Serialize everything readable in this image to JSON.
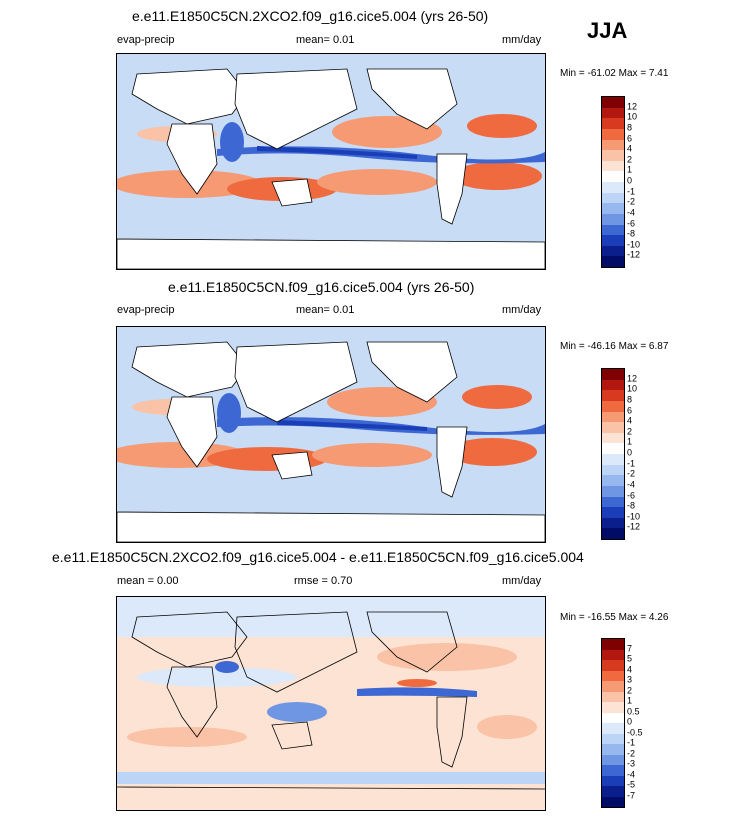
{
  "season": "JJA",
  "panels": [
    {
      "title": "e.e11.E1850C5CN.2XCO2.f09_g16.cice5.004 (yrs 26-50)",
      "variable": "evap-precip",
      "stat": "mean=   0.01",
      "units": "mm/day",
      "minmax": "Min = -61.02 Max =   7.41",
      "levels": [
        "12",
        "10",
        "8",
        "6",
        "4",
        "2",
        "1",
        "0",
        "-1",
        "-2",
        "-4",
        "-6",
        "-8",
        "-10",
        "-12"
      ]
    },
    {
      "title": "e.e11.E1850C5CN.f09_g16.cice5.004 (yrs 26-50)",
      "variable": "evap-precip",
      "stat": "mean=   0.01",
      "units": "mm/day",
      "minmax": "Min = -46.16 Max =   6.87",
      "levels": [
        "12",
        "10",
        "8",
        "6",
        "4",
        "2",
        "1",
        "0",
        "-1",
        "-2",
        "-4",
        "-6",
        "-8",
        "-10",
        "-12"
      ]
    },
    {
      "title": "e.e11.E1850C5CN.2XCO2.f09_g16.cice5.004 - e.e11.E1850C5CN.f09_g16.cice5.004",
      "variable": "mean =   0.00",
      "stat": "rmse =   0.70",
      "units": "mm/day",
      "minmax": "Min = -16.55 Max =   4.26",
      "levels": [
        "7",
        "5",
        "4",
        "3",
        "2",
        "1",
        "0.5",
        "0",
        "-0.5",
        "-1",
        "-2",
        "-3",
        "-4",
        "-5",
        "-7"
      ]
    }
  ],
  "colors": {
    "scale": [
      "#7f0000",
      "#b2180f",
      "#d73a1e",
      "#ef6a3f",
      "#f59a72",
      "#fac2a6",
      "#fde3d3",
      "#ffffff",
      "#dce9fa",
      "#bcd4f5",
      "#96b8ee",
      "#6e96e2",
      "#3d67d3",
      "#1a3db8",
      "#0a1f8c",
      "#000c66"
    ],
    "land": "#ffffff",
    "ocean_base": "#c8dcf6"
  }
}
